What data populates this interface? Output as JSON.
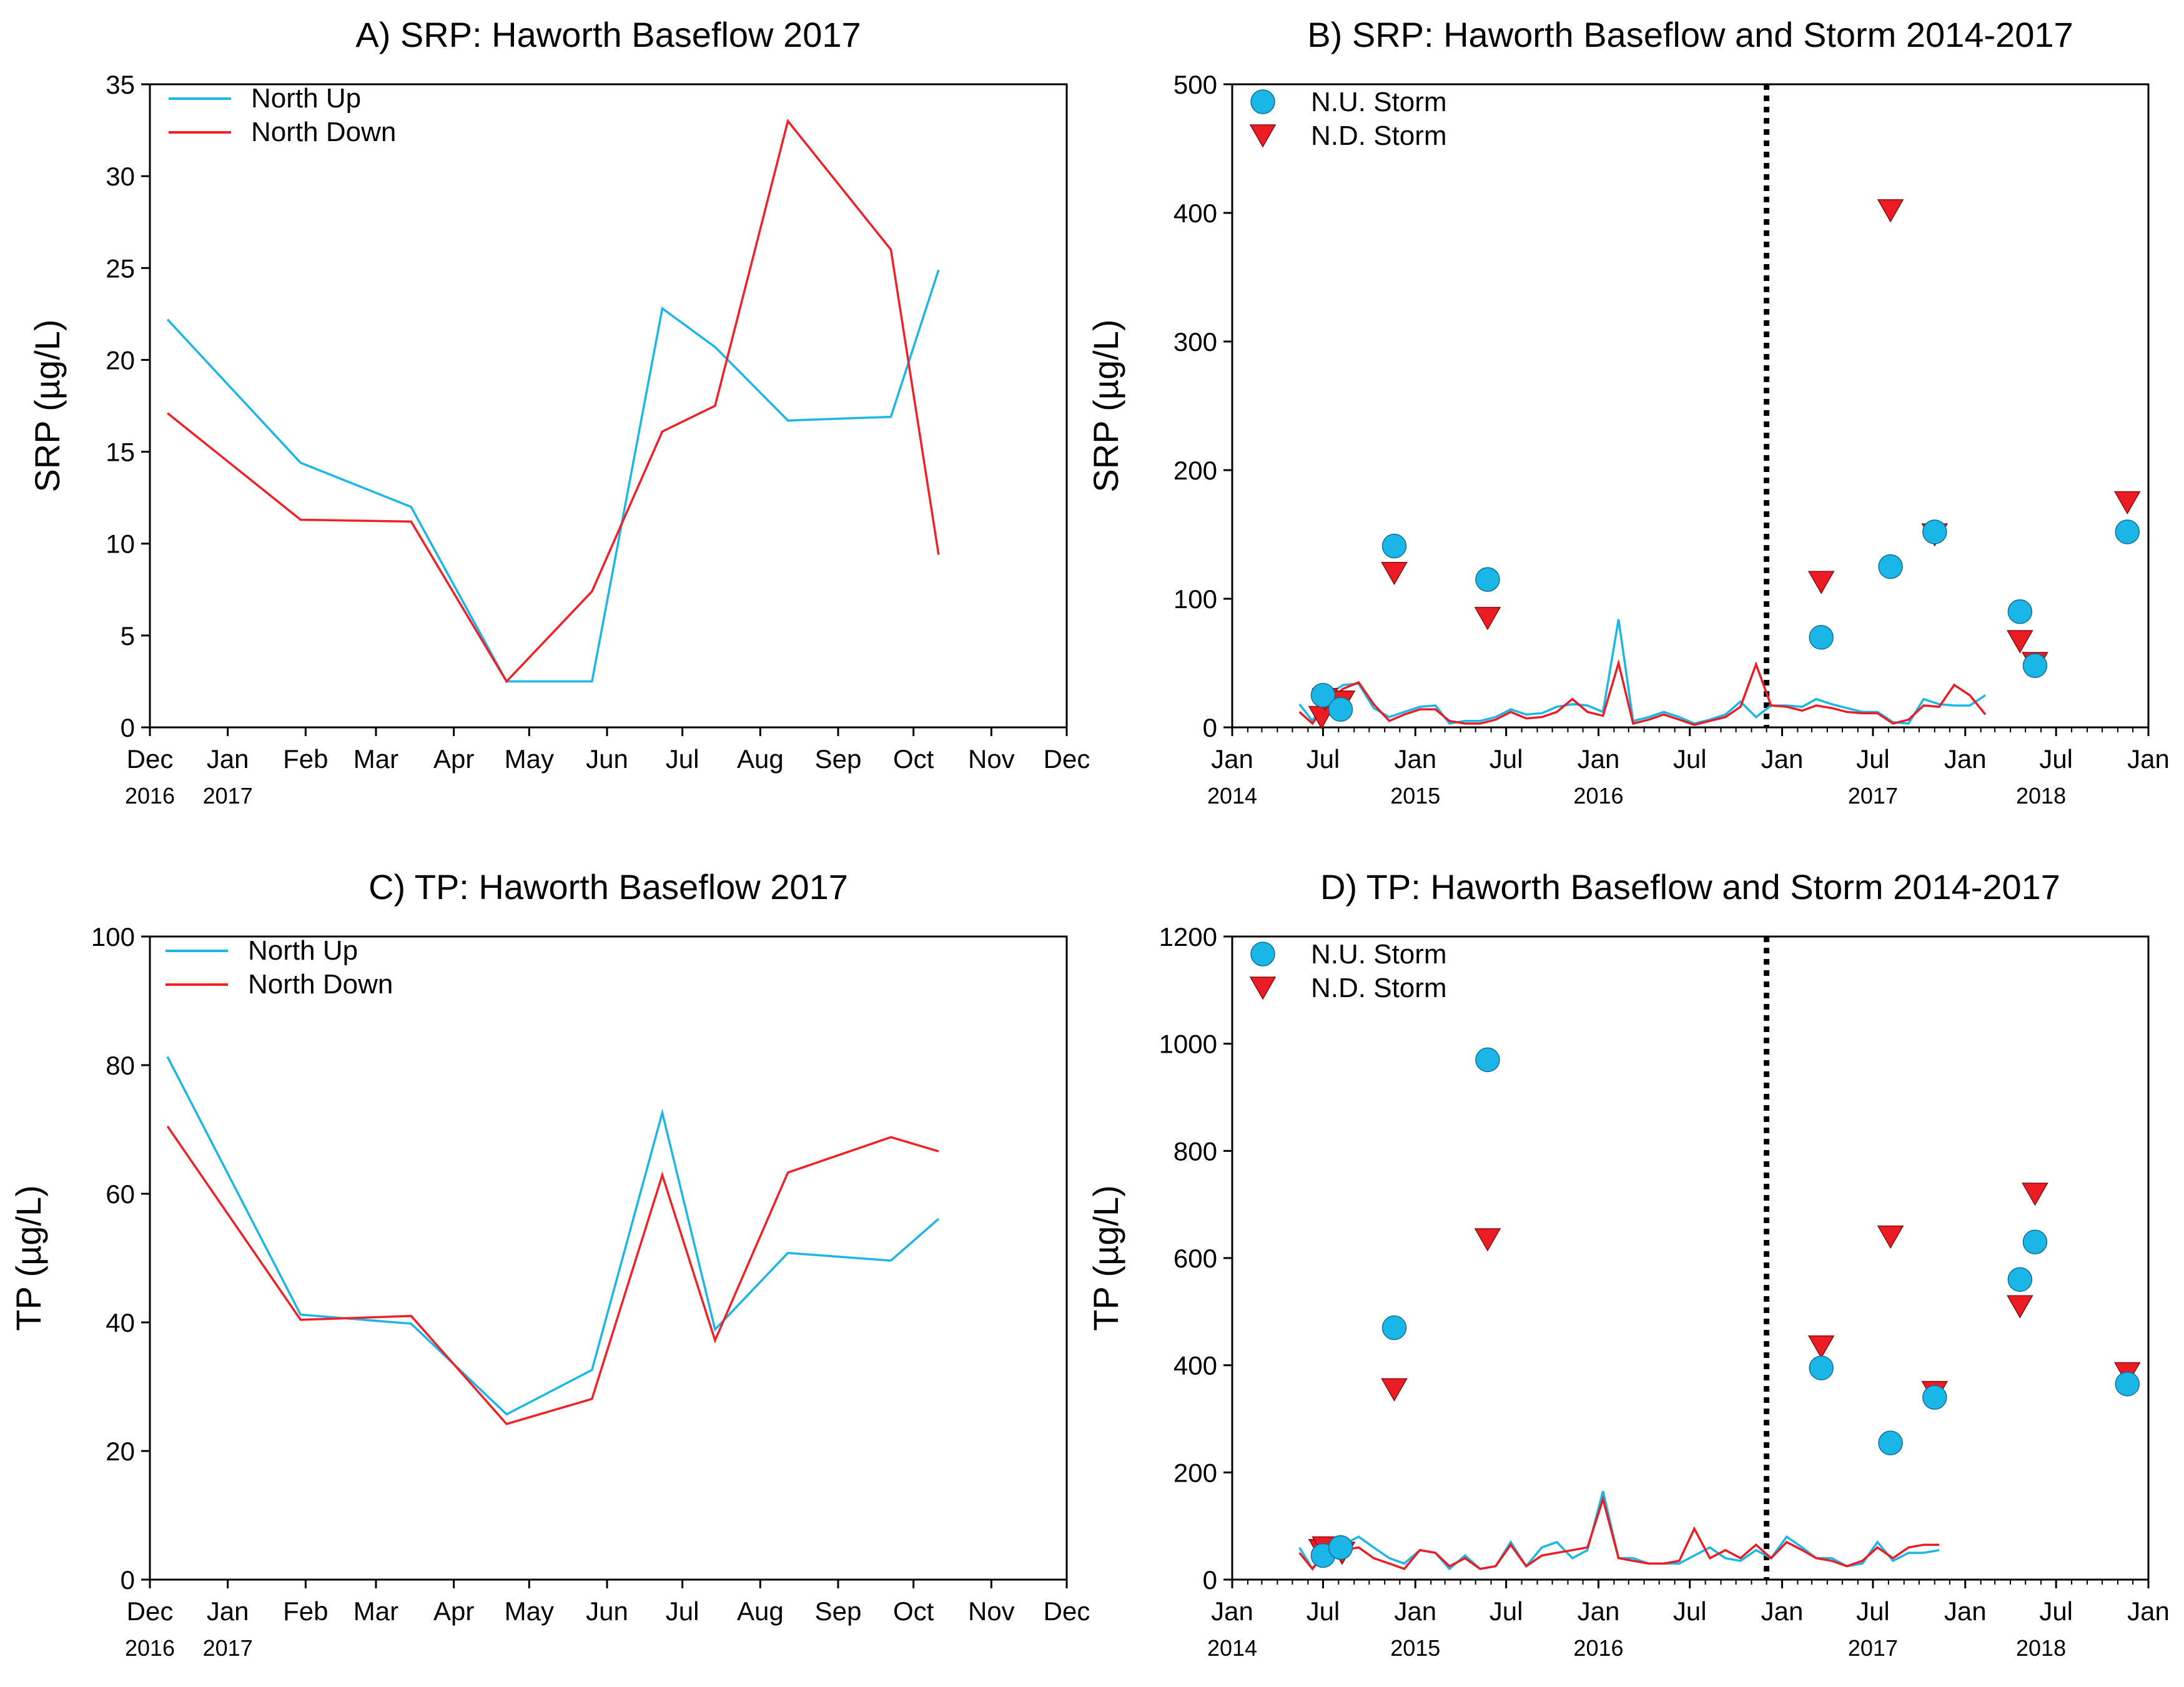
{
  "chart_data": [
    {
      "type": "line",
      "title": "A) SRP: Haworth Baseflow 2017",
      "ylabel": "SRP (µg/L)",
      "xlabel": "",
      "ylim": [
        0,
        35
      ],
      "yticks": [
        0,
        5,
        10,
        15,
        20,
        25,
        30,
        35
      ],
      "xlim": [
        "2016-12-01",
        "2017-12-01"
      ],
      "xtick_labels": [
        "Dec",
        "Jan",
        "Feb",
        "Mar",
        "Apr",
        "May",
        "Jun",
        "Jul",
        "Aug",
        "Sep",
        "Oct",
        "Nov",
        "Dec"
      ],
      "xtick_dates": [
        "2016-12-01",
        "2017-01-01",
        "2017-02-01",
        "2017-03-01",
        "2017-04-01",
        "2017-05-01",
        "2017-06-01",
        "2017-07-01",
        "2017-08-01",
        "2017-09-01",
        "2017-10-01",
        "2017-11-01",
        "2017-12-01"
      ],
      "year_labels": [
        {
          "text": "2016",
          "date": "2016-12-01"
        },
        {
          "text": "2017",
          "date": "2017-01-01"
        }
      ],
      "legend_position": "top-left",
      "grid": false,
      "series": [
        {
          "name": "North Up",
          "color": "#1ab6e8",
          "kind": "line",
          "x": [
            "2016-12-08",
            "2017-01-30",
            "2017-03-15",
            "2017-04-22",
            "2017-05-26",
            "2017-06-23",
            "2017-07-14",
            "2017-08-12",
            "2017-09-22",
            "2017-10-11"
          ],
          "y": [
            22.2,
            14.4,
            12.0,
            2.5,
            2.5,
            22.8,
            20.7,
            16.7,
            16.9,
            24.9
          ]
        },
        {
          "name": "North Down",
          "color": "#f21f26",
          "kind": "line",
          "x": [
            "2016-12-08",
            "2017-01-30",
            "2017-03-15",
            "2017-04-22",
            "2017-05-26",
            "2017-06-23",
            "2017-07-14",
            "2017-08-12",
            "2017-09-22",
            "2017-10-11"
          ],
          "y": [
            17.1,
            11.3,
            11.2,
            2.5,
            7.4,
            16.1,
            17.5,
            33.0,
            26.0,
            9.4
          ]
        }
      ]
    },
    {
      "type": "scatter",
      "title": "B) SRP: Haworth Baseflow and Storm 2014-2017",
      "ylabel": "SRP (µg/L)",
      "xlabel": "",
      "ylim": [
        0,
        500
      ],
      "yticks": [
        0,
        100,
        200,
        300,
        400,
        500
      ],
      "xlim": [
        "2014-01-01",
        "2019-01-01"
      ],
      "xtick_labels": [
        "Jan",
        "Jul",
        "Jan",
        "Jul",
        "Jan",
        "Jul",
        "Jan",
        "Jul",
        "Jan",
        "Jul",
        "Jan"
      ],
      "xtick_dates": [
        "2014-01-01",
        "2014-07-01",
        "2015-01-01",
        "2015-07-01",
        "2016-01-01",
        "2016-07-01",
        "2017-01-01",
        "2017-07-01",
        "2018-01-01",
        "2018-07-01",
        "2019-01-01"
      ],
      "year_labels": [
        {
          "text": "2014",
          "date": "2014-01-01"
        },
        {
          "text": "2015",
          "date": "2015-01-01"
        },
        {
          "text": "2016",
          "date": "2016-01-01"
        },
        {
          "text": "2017",
          "date": "2017-07-01"
        },
        {
          "text": "2018",
          "date": "2018-06-01"
        }
      ],
      "vline_date": "2016-12-01",
      "legend_position": "top-left",
      "grid": false,
      "series": [
        {
          "name": "N.U. Storm",
          "color": "#1ab6e8",
          "kind": "circle",
          "x": [
            "2014-07-01",
            "2014-08-05",
            "2014-11-20",
            "2015-05-25",
            "2017-03-20",
            "2017-08-05",
            "2017-11-01",
            "2018-04-20",
            "2018-05-20",
            "2018-11-20"
          ],
          "y": [
            25,
            14,
            141,
            115,
            70,
            125,
            152,
            90,
            48,
            152
          ]
        },
        {
          "name": "N.D. Storm",
          "color": "#ec1c24",
          "kind": "triangle",
          "x": [
            "2014-06-28",
            "2014-07-05",
            "2014-08-08",
            "2014-11-20",
            "2015-05-25",
            "2017-03-20",
            "2017-08-05",
            "2017-11-01",
            "2018-04-20",
            "2018-05-20",
            "2018-11-20"
          ],
          "y": [
            8,
            22,
            20,
            120,
            85,
            113,
            402,
            150,
            67,
            50,
            175
          ]
        },
        {
          "name": "",
          "color": "#1ab6e8",
          "kind": "line",
          "x": [
            "2014-05-15",
            "2014-06-10",
            "2014-07-10",
            "2014-08-10",
            "2014-09-10",
            "2014-10-10",
            "2014-11-10",
            "2014-12-10",
            "2015-01-10",
            "2015-02-10",
            "2015-03-10",
            "2015-04-10",
            "2015-05-10",
            "2015-06-10",
            "2015-07-10",
            "2015-08-10",
            "2015-09-10",
            "2015-10-10",
            "2015-11-10",
            "2015-12-10",
            "2016-01-10",
            "2016-02-10",
            "2016-03-10",
            "2016-04-10",
            "2016-05-10",
            "2016-06-10",
            "2016-07-10",
            "2016-08-10",
            "2016-09-10",
            "2016-10-10",
            "2016-11-10",
            "2016-12-10",
            "2017-01-10",
            "2017-02-10",
            "2017-03-10",
            "2017-04-10",
            "2017-05-10",
            "2017-06-10",
            "2017-07-10",
            "2017-08-10",
            "2017-09-10",
            "2017-10-10",
            "2017-11-10",
            "2017-12-10",
            "2018-01-10",
            "2018-02-10",
            "2018-03-10",
            "2018-04-10",
            "2018-05-10",
            "2018-06-10",
            "2018-07-10",
            "2018-08-10",
            "2018-09-10",
            "2018-10-10",
            "2018-11-10"
          ],
          "y": [
            18,
            5,
            25,
            33,
            34,
            15,
            8,
            12,
            16,
            17,
            3,
            5,
            5,
            8,
            14,
            10,
            11,
            16,
            18,
            17,
            12,
            84,
            5,
            8,
            12,
            8,
            3,
            6,
            10,
            20,
            8,
            17,
            17,
            16,
            22,
            18,
            15,
            12,
            12,
            4,
            3,
            22,
            18,
            17,
            17,
            25,
            0,
            0,
            0,
            0,
            0,
            0,
            0,
            0,
            0
          ]
        },
        {
          "name": "",
          "color": "#ec1c24",
          "kind": "line",
          "x": [
            "2014-05-15",
            "2014-06-10",
            "2014-07-10",
            "2014-08-10",
            "2014-09-10",
            "2014-10-10",
            "2014-11-10",
            "2014-12-10",
            "2015-01-10",
            "2015-02-10",
            "2015-03-10",
            "2015-04-10",
            "2015-05-10",
            "2015-06-10",
            "2015-07-10",
            "2015-08-10",
            "2015-09-10",
            "2015-10-10",
            "2015-11-10",
            "2015-12-10",
            "2016-01-10",
            "2016-02-10",
            "2016-03-10",
            "2016-04-10",
            "2016-05-10",
            "2016-06-10",
            "2016-07-10",
            "2016-08-10",
            "2016-09-10",
            "2016-10-10",
            "2016-11-10",
            "2016-12-10",
            "2017-01-10",
            "2017-02-10",
            "2017-03-10",
            "2017-04-10",
            "2017-05-10",
            "2017-06-10",
            "2017-07-10",
            "2017-08-10",
            "2017-09-10",
            "2017-10-10",
            "2017-11-10",
            "2017-12-10",
            "2018-01-10",
            "2018-02-10",
            "2018-03-10",
            "2018-04-10",
            "2018-05-10",
            "2018-06-10",
            "2018-07-10",
            "2018-08-10",
            "2018-09-10",
            "2018-10-10",
            "2018-11-10"
          ],
          "y": [
            12,
            3,
            20,
            30,
            35,
            18,
            5,
            10,
            14,
            14,
            5,
            3,
            3,
            6,
            12,
            7,
            8,
            12,
            22,
            12,
            9,
            50,
            3,
            6,
            10,
            6,
            2,
            5,
            8,
            16,
            49,
            17,
            16,
            13,
            17,
            15,
            12,
            11,
            11,
            3,
            6,
            17,
            16,
            33,
            25,
            10,
            0,
            0,
            0,
            0,
            0,
            0,
            0,
            0,
            0
          ]
        }
      ]
    },
    {
      "type": "line",
      "title": "C) TP: Haworth Baseflow 2017",
      "ylabel": "TP (µg/L)",
      "xlabel": "",
      "ylim": [
        0,
        100
      ],
      "yticks": [
        0,
        20,
        40,
        60,
        80,
        100
      ],
      "xlim": [
        "2016-12-01",
        "2017-12-01"
      ],
      "xtick_labels": [
        "Dec",
        "Jan",
        "Feb",
        "Mar",
        "Apr",
        "May",
        "Jun",
        "Jul",
        "Aug",
        "Sep",
        "Oct",
        "Nov",
        "Dec"
      ],
      "xtick_dates": [
        "2016-12-01",
        "2017-01-01",
        "2017-02-01",
        "2017-03-01",
        "2017-04-01",
        "2017-05-01",
        "2017-06-01",
        "2017-07-01",
        "2017-08-01",
        "2017-09-01",
        "2017-10-01",
        "2017-11-01",
        "2017-12-01"
      ],
      "year_labels": [
        {
          "text": "2016",
          "date": "2016-12-01"
        },
        {
          "text": "2017",
          "date": "2017-01-01"
        }
      ],
      "legend_position": "top-left",
      "grid": false,
      "series": [
        {
          "name": "North Up",
          "color": "#1ab6e8",
          "kind": "line",
          "x": [
            "2016-12-08",
            "2017-01-30",
            "2017-03-15",
            "2017-04-22",
            "2017-05-26",
            "2017-06-23",
            "2017-07-14",
            "2017-08-12",
            "2017-09-22",
            "2017-10-11"
          ],
          "y": [
            81.3,
            41.2,
            39.8,
            25.7,
            32.6,
            72.6,
            38.9,
            50.8,
            49.6,
            56.1
          ]
        },
        {
          "name": "North Down",
          "color": "#f21f26",
          "kind": "line",
          "x": [
            "2016-12-08",
            "2017-01-30",
            "2017-03-15",
            "2017-04-22",
            "2017-05-26",
            "2017-06-23",
            "2017-07-14",
            "2017-08-12",
            "2017-09-22",
            "2017-10-11"
          ],
          "y": [
            70.5,
            40.4,
            41.0,
            24.2,
            28.1,
            62.9,
            37.2,
            63.3,
            68.8,
            66.6
          ]
        }
      ]
    },
    {
      "type": "scatter",
      "title": "D) TP: Haworth Baseflow and Storm 2014-2017",
      "ylabel": "TP (µg/L)",
      "xlabel": "",
      "ylim": [
        0,
        1200
      ],
      "yticks": [
        0,
        200,
        400,
        600,
        800,
        1000,
        1200
      ],
      "xlim": [
        "2014-01-01",
        "2019-01-01"
      ],
      "xtick_labels": [
        "Jan",
        "Jul",
        "Jan",
        "Jul",
        "Jan",
        "Jul",
        "Jan",
        "Jul",
        "Jan",
        "Jul",
        "Jan"
      ],
      "xtick_dates": [
        "2014-01-01",
        "2014-07-01",
        "2015-01-01",
        "2015-07-01",
        "2016-01-01",
        "2016-07-01",
        "2017-01-01",
        "2017-07-01",
        "2018-01-01",
        "2018-07-01",
        "2019-01-01"
      ],
      "year_labels": [
        {
          "text": "2014",
          "date": "2014-01-01"
        },
        {
          "text": "2015",
          "date": "2015-01-01"
        },
        {
          "text": "2016",
          "date": "2016-01-01"
        },
        {
          "text": "2017",
          "date": "2017-07-01"
        },
        {
          "text": "2018",
          "date": "2018-06-01"
        }
      ],
      "vline_date": "2016-12-01",
      "legend_position": "top-left",
      "grid": false,
      "series": [
        {
          "name": "N.U. Storm",
          "color": "#1ab6e8",
          "kind": "circle",
          "x": [
            "2014-07-01",
            "2014-08-05",
            "2014-11-20",
            "2015-05-25",
            "2017-03-20",
            "2017-08-05",
            "2017-11-01",
            "2018-04-20",
            "2018-05-20",
            "2018-11-20"
          ],
          "y": [
            45,
            60,
            470,
            970,
            395,
            255,
            340,
            560,
            630,
            365
          ]
        },
        {
          "name": "N.D. Storm",
          "color": "#ec1c24",
          "kind": "triangle",
          "x": [
            "2014-06-28",
            "2014-07-05",
            "2014-08-08",
            "2014-11-20",
            "2015-05-25",
            "2017-03-20",
            "2017-08-05",
            "2017-11-01",
            "2018-04-20",
            "2018-05-20",
            "2018-11-20"
          ],
          "y": [
            55,
            60,
            50,
            355,
            635,
            435,
            640,
            350,
            510,
            720,
            385
          ]
        },
        {
          "name": "",
          "color": "#1ab6e8",
          "kind": "line",
          "x": [
            "2014-05-15",
            "2014-06-10",
            "2014-07-10",
            "2014-08-10",
            "2014-09-10",
            "2014-10-10",
            "2014-11-10",
            "2014-12-10",
            "2015-01-10",
            "2015-02-10",
            "2015-03-10",
            "2015-04-10",
            "2015-05-10",
            "2015-06-10",
            "2015-07-10",
            "2015-08-10",
            "2015-09-10",
            "2015-10-10",
            "2015-11-10",
            "2015-12-10",
            "2016-01-10",
            "2016-02-10",
            "2016-03-10",
            "2016-04-10",
            "2016-05-10",
            "2016-06-10",
            "2016-07-10",
            "2016-08-10",
            "2016-09-10",
            "2016-10-10",
            "2016-11-10",
            "2016-12-10",
            "2017-01-10",
            "2017-02-10",
            "2017-03-10",
            "2017-04-10",
            "2017-05-10",
            "2017-06-10",
            "2017-07-10",
            "2017-08-10",
            "2017-09-10",
            "2017-10-10",
            "2017-11-10",
            "2017-12-10",
            "2018-01-10",
            "2018-02-10",
            "2018-03-10",
            "2018-04-10",
            "2018-05-10",
            "2018-06-10",
            "2018-07-10",
            "2018-08-10",
            "2018-09-10",
            "2018-10-10"
          ],
          "y": [
            60,
            20,
            55,
            65,
            80,
            60,
            40,
            30,
            55,
            50,
            20,
            45,
            20,
            25,
            70,
            25,
            60,
            70,
            40,
            55,
            165,
            40,
            40,
            30,
            30,
            30,
            45,
            60,
            40,
            35,
            55,
            40,
            80,
            60,
            40,
            40,
            25,
            30,
            70,
            35,
            50,
            50,
            55,
            0,
            0,
            0,
            0,
            0,
            0,
            0,
            0,
            0,
            0,
            0
          ]
        },
        {
          "name": "",
          "color": "#ec1c24",
          "kind": "line",
          "x": [
            "2014-05-15",
            "2014-06-10",
            "2014-07-10",
            "2014-08-10",
            "2014-09-10",
            "2014-10-10",
            "2014-11-10",
            "2014-12-10",
            "2015-01-10",
            "2015-02-10",
            "2015-03-10",
            "2015-04-10",
            "2015-05-10",
            "2015-06-10",
            "2015-07-10",
            "2015-08-10",
            "2015-09-10",
            "2015-10-10",
            "2015-11-10",
            "2015-12-10",
            "2016-01-10",
            "2016-02-10",
            "2016-03-10",
            "2016-04-10",
            "2016-05-10",
            "2016-06-10",
            "2016-07-10",
            "2016-08-10",
            "2016-09-10",
            "2016-10-10",
            "2016-11-10",
            "2016-12-10",
            "2017-01-10",
            "2017-02-10",
            "2017-03-10",
            "2017-04-10",
            "2017-05-10",
            "2017-06-10",
            "2017-07-10",
            "2017-08-10",
            "2017-09-10",
            "2017-10-10",
            "2017-11-10",
            "2017-12-10",
            "2018-01-10",
            "2018-02-10",
            "2018-03-10",
            "2018-04-10",
            "2018-05-10",
            "2018-06-10",
            "2018-07-10",
            "2018-08-10",
            "2018-09-10",
            "2018-10-10"
          ],
          "y": [
            50,
            20,
            60,
            55,
            60,
            40,
            30,
            20,
            55,
            50,
            25,
            40,
            20,
            25,
            65,
            25,
            45,
            50,
            55,
            60,
            150,
            40,
            35,
            30,
            30,
            35,
            95,
            40,
            55,
            40,
            65,
            40,
            70,
            55,
            40,
            35,
            25,
            35,
            60,
            40,
            60,
            65,
            65,
            0,
            0,
            0,
            0,
            0,
            0,
            0,
            0,
            0,
            0,
            0
          ]
        }
      ]
    }
  ]
}
